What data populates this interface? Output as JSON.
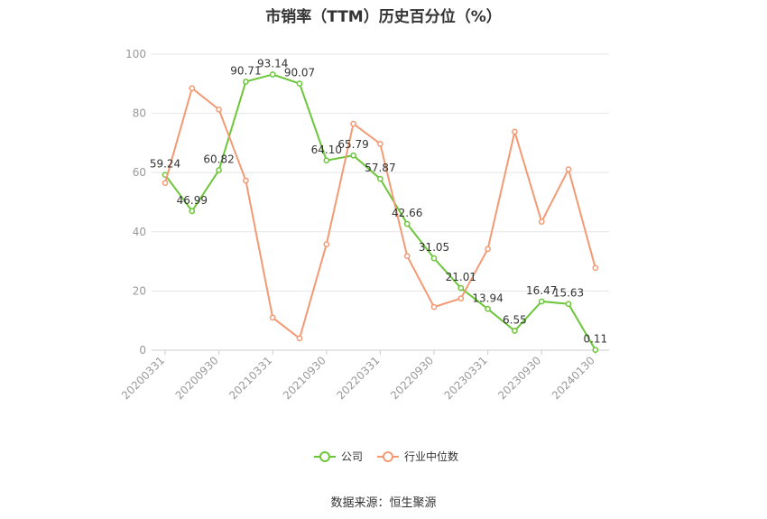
{
  "title": "市销率（TTM）历史百分位（%）",
  "source": "数据来源：恒生聚源",
  "colors": {
    "company": "#6cc63a",
    "industry": "#f39a74",
    "grid": "#e6e6e6",
    "axis_text": "#999999",
    "label_text": "#333333"
  },
  "chart_data": {
    "type": "line",
    "title": "市销率（TTM）历史百分位（%）",
    "xlabel": "",
    "ylabel": "",
    "ylim": [
      0,
      100
    ],
    "yticks": [
      0,
      20,
      40,
      60,
      80,
      100
    ],
    "grid": true,
    "legend_position": "bottom-center",
    "x": [
      "20200331",
      "20200630",
      "20200930",
      "20201231",
      "20210331",
      "20210630",
      "20210930",
      "20211231",
      "20220331",
      "20220630",
      "20220930",
      "20221231",
      "20230331",
      "20230630",
      "20230930",
      "20231231",
      "20240130"
    ],
    "x_tick_labels": [
      "20200331",
      "20200930",
      "20210331",
      "20210930",
      "20220331",
      "20220930",
      "20230331",
      "20230930",
      "20240130"
    ],
    "x_tick_indices": [
      0,
      2,
      4,
      6,
      8,
      10,
      12,
      14,
      16
    ],
    "series": [
      {
        "name": "公司",
        "color": "#6cc63a",
        "show_labels": true,
        "values": [
          59.24,
          46.99,
          60.82,
          90.71,
          93.14,
          90.07,
          64.1,
          65.79,
          57.87,
          42.66,
          31.05,
          21.01,
          13.94,
          6.55,
          16.47,
          15.63,
          0.11
        ],
        "labels": [
          "59.24",
          "46.99",
          "60.82",
          "90.71",
          "93.14",
          "90.07",
          "64.10",
          "65.79",
          "57.87",
          "42.66",
          "31.05",
          "21.01",
          "13.94",
          "6.55",
          "16.47",
          "15.63",
          "0.11"
        ]
      },
      {
        "name": "行业中位数",
        "color": "#f39a74",
        "show_labels": false,
        "values": [
          56.5,
          88.5,
          81.3,
          57.3,
          11.0,
          4.0,
          35.8,
          76.5,
          69.7,
          31.8,
          14.6,
          17.5,
          34.2,
          73.8,
          43.4,
          61.1,
          27.8
        ]
      }
    ]
  }
}
